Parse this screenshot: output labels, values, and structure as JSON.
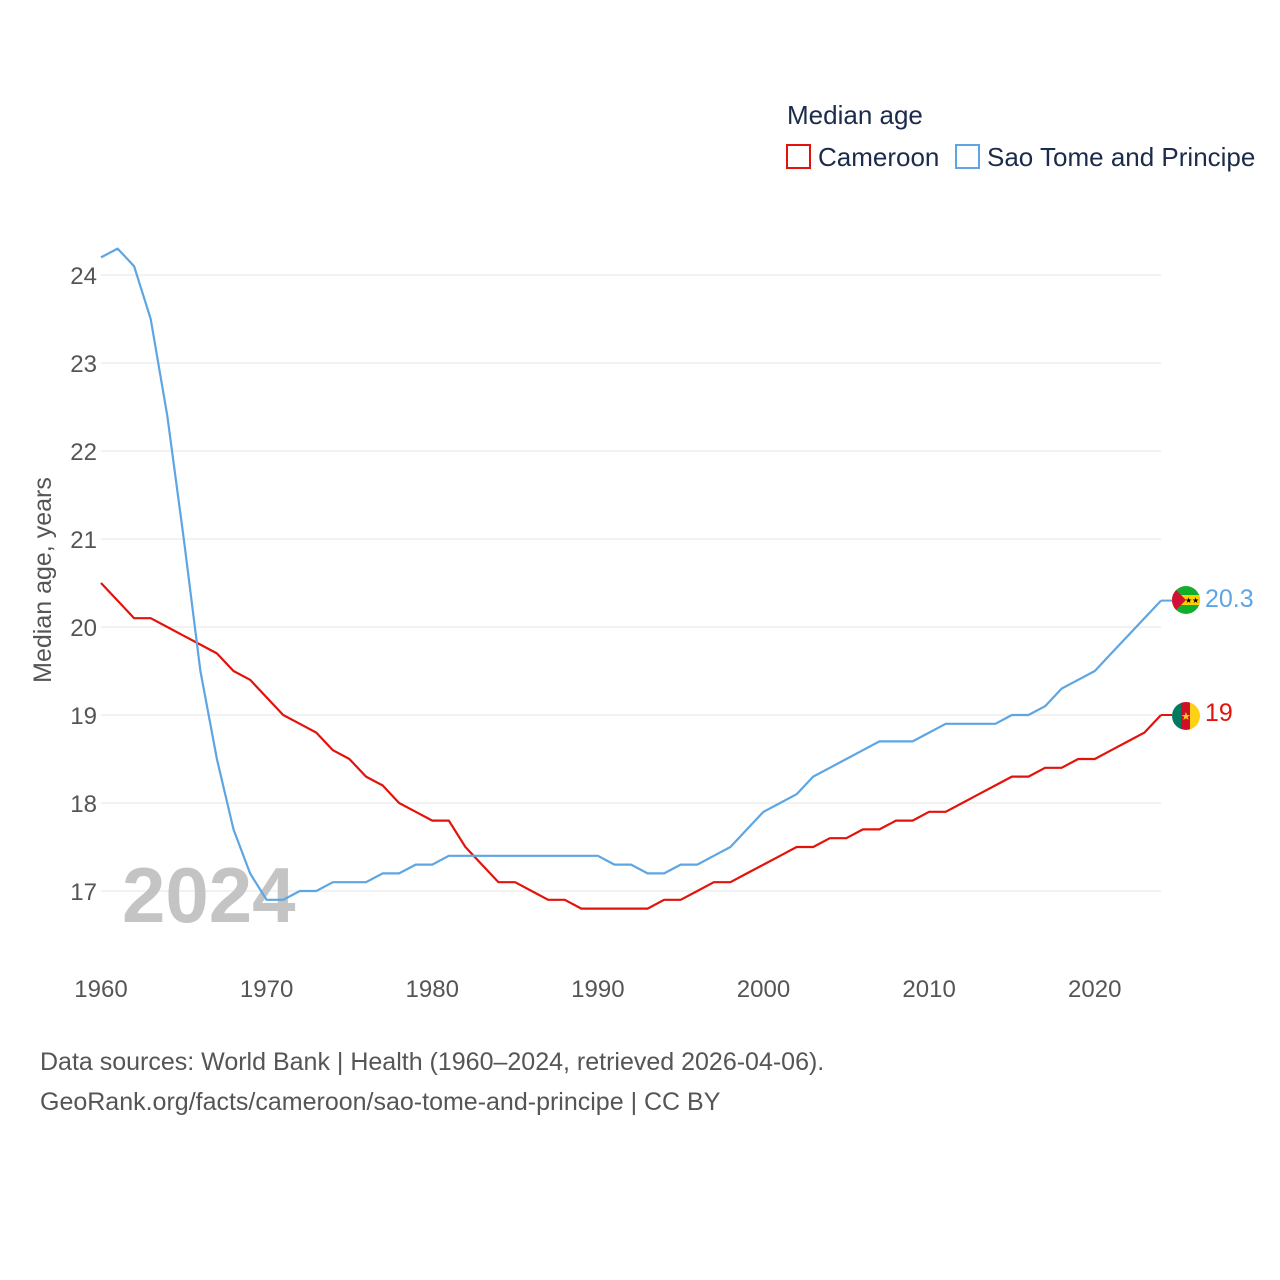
{
  "chart_data": {
    "type": "line",
    "title": "Median age",
    "xlabel": "",
    "ylabel": "Median age, years",
    "xlim": [
      1960,
      2024
    ],
    "ylim": [
      16.1,
      24.6
    ],
    "x_ticks": [
      1960,
      1970,
      1980,
      1990,
      2000,
      2010,
      2020
    ],
    "y_ticks": [
      17,
      18,
      19,
      20,
      21,
      22,
      23,
      24
    ],
    "grid": true,
    "legend_position": "top-right",
    "year_label": "2024",
    "x": [
      1960,
      1961,
      1962,
      1963,
      1964,
      1965,
      1966,
      1967,
      1968,
      1969,
      1970,
      1971,
      1972,
      1973,
      1974,
      1975,
      1976,
      1977,
      1978,
      1979,
      1980,
      1981,
      1982,
      1983,
      1984,
      1985,
      1986,
      1987,
      1988,
      1989,
      1990,
      1991,
      1992,
      1993,
      1994,
      1995,
      1996,
      1997,
      1998,
      1999,
      2000,
      2001,
      2002,
      2003,
      2004,
      2005,
      2006,
      2007,
      2008,
      2009,
      2010,
      2011,
      2012,
      2013,
      2014,
      2015,
      2016,
      2017,
      2018,
      2019,
      2020,
      2021,
      2022,
      2023,
      2024
    ],
    "series": [
      {
        "name": "Cameroon",
        "color": "#e3120b",
        "end_label": "19",
        "flag": "cameroon-flag",
        "values": [
          20.5,
          20.3,
          20.1,
          20.1,
          20.0,
          19.9,
          19.8,
          19.7,
          19.5,
          19.4,
          19.2,
          19.0,
          18.9,
          18.8,
          18.6,
          18.5,
          18.3,
          18.2,
          18.0,
          17.9,
          17.8,
          17.8,
          17.5,
          17.3,
          17.1,
          17.1,
          17.0,
          16.9,
          16.9,
          16.8,
          16.8,
          16.8,
          16.8,
          16.8,
          16.9,
          16.9,
          17.0,
          17.1,
          17.1,
          17.2,
          17.3,
          17.4,
          17.5,
          17.5,
          17.6,
          17.6,
          17.7,
          17.7,
          17.8,
          17.8,
          17.9,
          17.9,
          18.0,
          18.1,
          18.2,
          18.3,
          18.3,
          18.4,
          18.4,
          18.5,
          18.5,
          18.6,
          18.7,
          18.8,
          19.0
        ]
      },
      {
        "name": "Sao Tome and Principe",
        "color": "#5da5e3",
        "end_label": "20.3",
        "flag": "sao-tome-flag",
        "values": [
          24.2,
          24.3,
          24.1,
          23.5,
          22.4,
          21.0,
          19.5,
          18.5,
          17.7,
          17.2,
          16.9,
          16.9,
          17.0,
          17.0,
          17.1,
          17.1,
          17.1,
          17.2,
          17.2,
          17.3,
          17.3,
          17.4,
          17.4,
          17.4,
          17.4,
          17.4,
          17.4,
          17.4,
          17.4,
          17.4,
          17.4,
          17.3,
          17.3,
          17.2,
          17.2,
          17.3,
          17.3,
          17.4,
          17.5,
          17.7,
          17.9,
          18.0,
          18.1,
          18.3,
          18.4,
          18.5,
          18.6,
          18.7,
          18.7,
          18.7,
          18.8,
          18.9,
          18.9,
          18.9,
          18.9,
          19.0,
          19.0,
          19.1,
          19.3,
          19.4,
          19.5,
          19.7,
          19.9,
          20.1,
          20.3
        ]
      }
    ]
  },
  "legend": {
    "title": "Median age",
    "items": [
      "Cameroon",
      "Sao Tome and Principe"
    ]
  },
  "source": {
    "line1": "Data sources: World Bank | Health (1960–2024, retrieved 2026-04-06).",
    "line2": "GeoRank.org/facts/cameroon/sao-tome-and-principe | CC BY"
  }
}
